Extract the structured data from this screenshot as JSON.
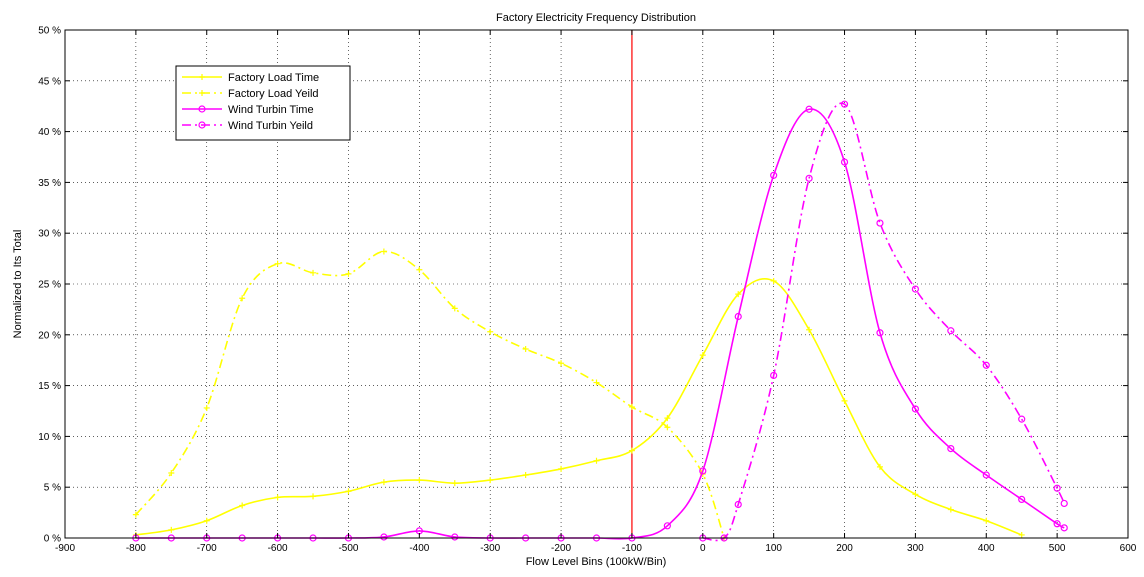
{
  "chart_data": {
    "type": "line",
    "title": "Factory Electricity Frequency Distribution",
    "xlabel": "Flow Level Bins (100kW/Bin)",
    "ylabel": "Normalized to Its Total",
    "xlim": [
      -900,
      600
    ],
    "ylim": [
      0,
      50
    ],
    "x_ticks": [
      -900,
      -800,
      -700,
      -600,
      -500,
      -400,
      -300,
      -200,
      -100,
      0,
      100,
      200,
      300,
      400,
      500,
      600
    ],
    "y_ticks": [
      0,
      5,
      10,
      15,
      20,
      25,
      30,
      35,
      40,
      45,
      50
    ],
    "y_tick_labels": [
      "0 %",
      "5 %",
      "10 %",
      "15 %",
      "20 %",
      "25 %",
      "30 %",
      "35 %",
      "40 %",
      "45 %",
      "50 %"
    ],
    "grid": true,
    "legend_position": "top-left",
    "vline": {
      "x": -100,
      "color": "#ff0000"
    },
    "series": [
      {
        "name": "Factory Load Time",
        "color": "#ffff00",
        "dash": "solid",
        "marker": "plus",
        "x": [
          -800,
          -750,
          -700,
          -650,
          -600,
          -550,
          -500,
          -450,
          -400,
          -350,
          -300,
          -250,
          -200,
          -150,
          -100,
          -50,
          0,
          50,
          100,
          150,
          200,
          250,
          300,
          350,
          400,
          450
        ],
        "y": [
          0.3,
          0.8,
          1.7,
          3.2,
          4.0,
          4.1,
          4.6,
          5.5,
          5.7,
          5.4,
          5.7,
          6.2,
          6.8,
          7.6,
          8.6,
          11.8,
          18.0,
          24.0,
          25.3,
          20.5,
          13.5,
          7.0,
          4.3,
          2.8,
          1.7,
          0.3
        ]
      },
      {
        "name": "Factory Load Yeild",
        "color": "#ffff00",
        "dash": "dashdot",
        "marker": "plus",
        "x": [
          -800,
          -750,
          -700,
          -650,
          -600,
          -550,
          -500,
          -450,
          -400,
          -350,
          -300,
          -250,
          -200,
          -150,
          -100,
          -50,
          0,
          30
        ],
        "y": [
          2.3,
          6.4,
          12.8,
          23.6,
          27.0,
          26.1,
          26.0,
          28.2,
          26.4,
          22.6,
          20.3,
          18.6,
          17.2,
          15.3,
          12.9,
          10.9,
          6.3,
          0.0
        ]
      },
      {
        "name": "Wind Turbin Time",
        "color": "#ff00ff",
        "dash": "solid",
        "marker": "circle",
        "x": [
          -800,
          -750,
          -700,
          -650,
          -600,
          -550,
          -500,
          -450,
          -400,
          -350,
          -300,
          -250,
          -200,
          -150,
          -100,
          -50,
          0,
          50,
          100,
          150,
          200,
          250,
          300,
          350,
          400,
          450,
          500,
          510
        ],
        "y": [
          0,
          0,
          0,
          0,
          0,
          0,
          0,
          0.1,
          0.7,
          0.1,
          0,
          0,
          0,
          0,
          0,
          1.2,
          6.6,
          21.8,
          35.7,
          42.2,
          37.0,
          20.2,
          12.7,
          8.8,
          6.2,
          3.8,
          1.4,
          1.0
        ]
      },
      {
        "name": "Wind Turbin Yeild",
        "color": "#ff00ff",
        "dash": "dashdot",
        "marker": "circle",
        "x": [
          0,
          30,
          50,
          100,
          150,
          200,
          250,
          300,
          350,
          400,
          450,
          500,
          510
        ],
        "y": [
          0,
          0,
          3.3,
          16.0,
          35.4,
          42.7,
          31.0,
          24.5,
          20.4,
          17.0,
          11.7,
          4.9,
          3.4
        ]
      }
    ]
  }
}
